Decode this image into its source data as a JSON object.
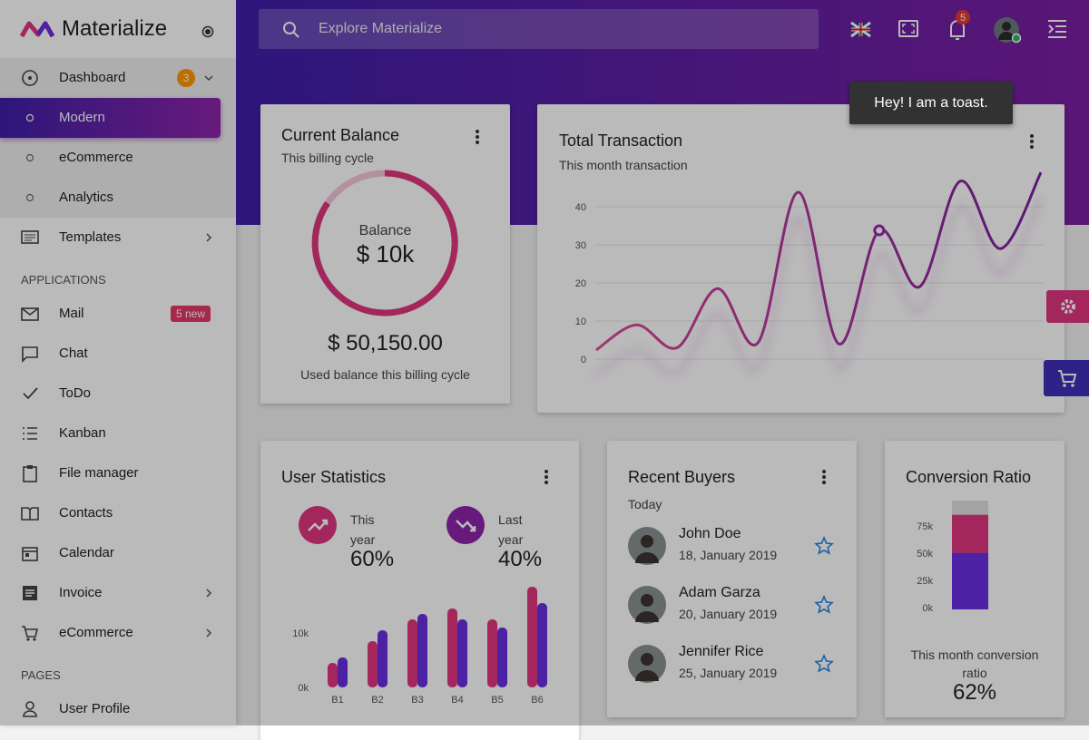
{
  "brand": "Materialize",
  "search_placeholder": "Explore Materialize",
  "notification_count": "5",
  "toast": "Hey! I am a toast.",
  "menu": [
    {
      "label": "Dashboard",
      "badge": "3"
    },
    {
      "label": "Modern"
    },
    {
      "label": "eCommerce"
    },
    {
      "label": "Analytics"
    },
    {
      "label": "Templates"
    },
    {
      "section": "APPLICATIONS"
    },
    {
      "label": "Mail",
      "badge": "5 new"
    },
    {
      "label": "Chat"
    },
    {
      "label": "ToDo"
    },
    {
      "label": "Kanban"
    },
    {
      "label": "File manager"
    },
    {
      "label": "Contacts"
    },
    {
      "label": "Calendar"
    },
    {
      "label": "Invoice"
    },
    {
      "label": "eCommerce"
    },
    {
      "section": "PAGES"
    },
    {
      "label": "User Profile"
    }
  ],
  "balance_card": {
    "title": "Current Balance",
    "subtitle": "This billing cycle",
    "ring_label": "Balance",
    "ring_value": "$ 10k",
    "amount": "$ 50,150.00",
    "caption": "Used balance this billing cycle"
  },
  "transaction_card": {
    "title": "Total Transaction",
    "subtitle": "This month transaction",
    "chart_data": {
      "type": "line",
      "color": "#9c27b0",
      "values": [
        2.4,
        9,
        3,
        18.5,
        4.3,
        43.8,
        4,
        33.8,
        19,
        46.7,
        29,
        49
      ],
      "ylim": [
        -5,
        50
      ],
      "yticks": [
        0,
        10,
        20,
        30,
        40
      ],
      "grid": true
    }
  },
  "stats_card": {
    "title": "User Statistics",
    "items": [
      {
        "label": "This year",
        "value": "60%"
      },
      {
        "label": "Last year",
        "value": "40%"
      }
    ],
    "chart_data": {
      "type": "bar",
      "categories": [
        "B1",
        "B2",
        "B3",
        "B4",
        "B5",
        "B6"
      ],
      "series": [
        {
          "color": "#e0357f",
          "values": [
            4500,
            8500,
            12500,
            14500,
            12500,
            18500
          ]
        },
        {
          "color": "#6a2ee0",
          "values": [
            5500,
            10500,
            13500,
            12500,
            11000,
            15500
          ]
        }
      ],
      "ylim": [
        0,
        20000
      ],
      "yticks": [
        {
          "value": 0,
          "label": "0k"
        },
        {
          "value": 10000,
          "label": "10k"
        }
      ]
    }
  },
  "buyers_card": {
    "title": "Recent Buyers",
    "subtitle": "Today",
    "buyers": [
      {
        "name": "John Doe",
        "date": "18, January 2019"
      },
      {
        "name": "Adam Garza",
        "date": "20, January 2019"
      },
      {
        "name": "Jennifer Rice",
        "date": "25, January 2019"
      }
    ]
  },
  "conversion_card": {
    "title": "Conversion Ratio",
    "caption": "This month conversion ratio",
    "value": "62%",
    "chart_data": {
      "type": "stacked-bar",
      "series": [
        {
          "color": "#6a2ee0",
          "values": [
            52000
          ]
        },
        {
          "color": "#e0357f",
          "values": [
            35000
          ]
        },
        {
          "color": "#e0e0e0",
          "values": [
            13000
          ]
        }
      ],
      "ylim": [
        0,
        100000
      ],
      "yticks": [
        {
          "value": 0,
          "label": "0k"
        },
        {
          "value": 25000,
          "label": "25k"
        },
        {
          "value": 50000,
          "label": "50k"
        },
        {
          "value": 75000,
          "label": "75k"
        }
      ]
    }
  }
}
